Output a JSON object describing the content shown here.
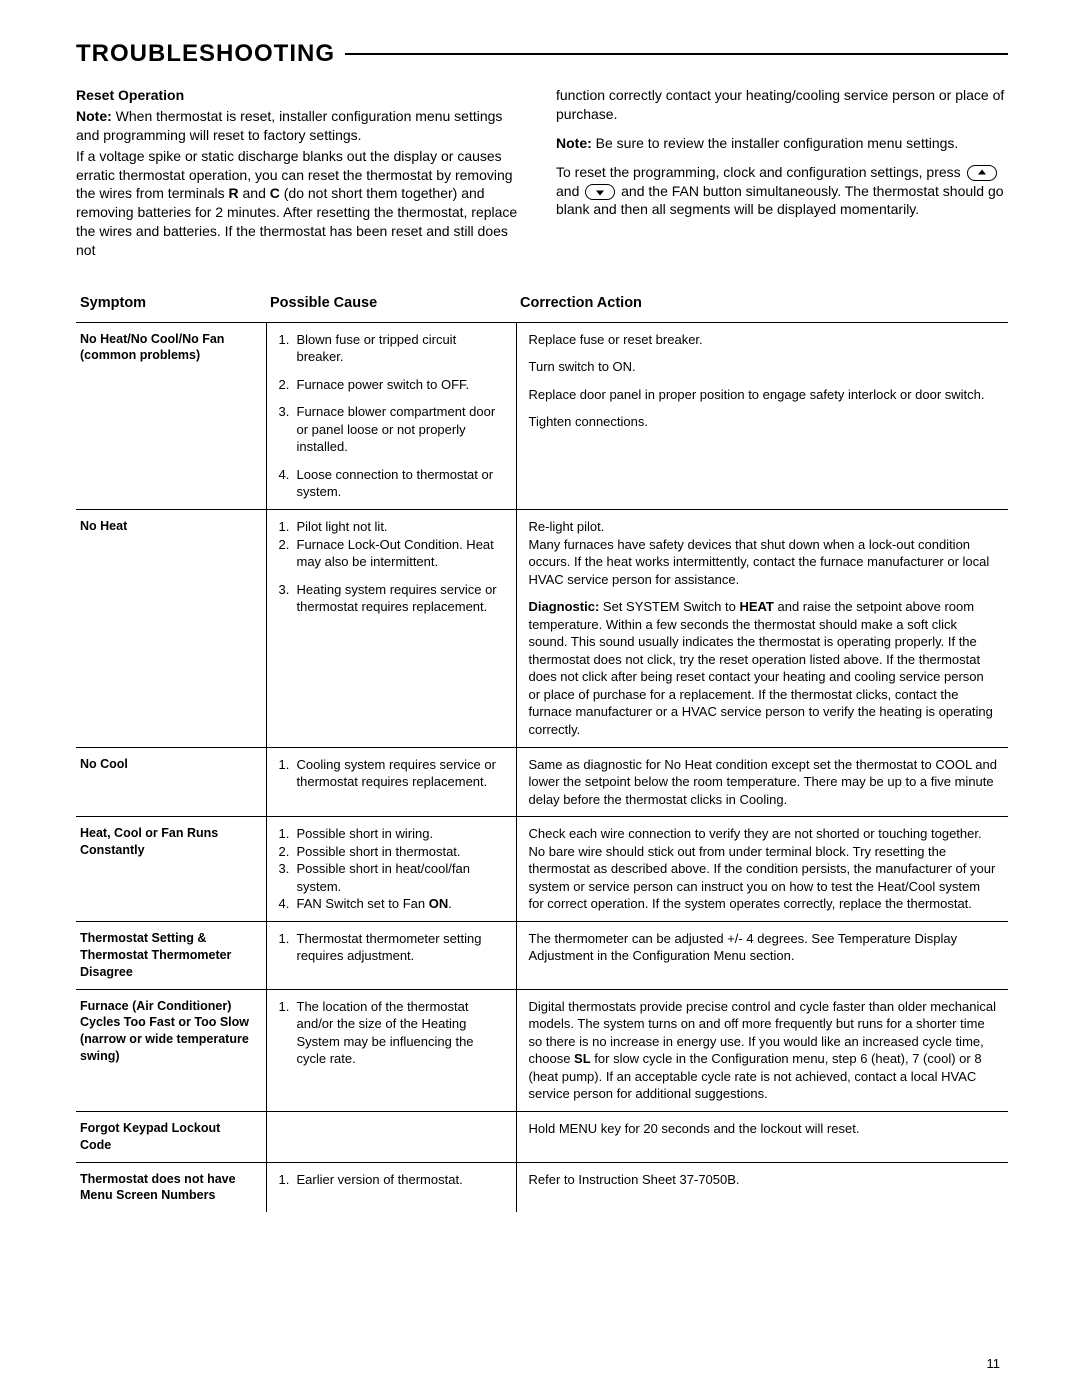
{
  "title": "TROUBLESHOOTING",
  "page_number": "11",
  "intro": {
    "left": {
      "heading": "Reset Operation",
      "note_label": "Note:",
      "note_text": " When thermostat is reset, installer configuration menu settings and programming will reset to factory settings.",
      "p2_a": "If a voltage spike or static discharge blanks out the display or causes erratic thermostat operation, you can reset the thermostat by removing the wires from terminals ",
      "p2_b": " and ",
      "p2_c": " (do not short them together) and removing batteries for 2 minutes. After resetting the thermostat, replace the wires and batteries. If the thermostat has been reset and still does not",
      "bold_R": "R",
      "bold_C": "C"
    },
    "right": {
      "p1": "function correctly contact your heating/cooling service person or place of purchase.",
      "note_label": "Note:",
      "note_text": " Be sure to review the installer configuration menu settings.",
      "p3_a": "To reset the programming, clock and configuration settings, press ",
      "p3_b": " and ",
      "p3_c": " and the FAN button simultaneously. The thermostat should go blank and then all segments will be displayed momentarily."
    }
  },
  "headers": {
    "symptom": "Symptom",
    "cause": "Possible Cause",
    "action": "Correction Action"
  },
  "rows": [
    {
      "symptom": "No Heat/No Cool/No Fan (common problems)",
      "causes": [
        {
          "nums": [
            "1."
          ],
          "texts": [
            "Blown fuse or tripped circuit breaker."
          ]
        },
        {
          "nums": [
            "2."
          ],
          "texts": [
            "Furnace power switch to OFF."
          ]
        },
        {
          "nums": [
            "3."
          ],
          "texts": [
            "Furnace blower compartment door or panel loose or not properly installed."
          ]
        },
        {
          "nums": [
            "4."
          ],
          "texts": [
            "Loose connection to thermostat or system."
          ]
        }
      ],
      "actions": [
        "Replace fuse or reset breaker.",
        "Turn switch to ON.",
        "Replace door panel in proper position to engage safety interlock or door switch.",
        "Tighten connections."
      ]
    },
    {
      "symptom": "No Heat",
      "causes": [
        {
          "nums": [
            "1.",
            "2."
          ],
          "texts": [
            "Pilot light not lit.",
            "Furnace Lock-Out Condition. Heat may also be intermittent."
          ]
        },
        {
          "nums": [
            "3."
          ],
          "texts": [
            "Heating system requires service or thermostat requires replacement."
          ]
        }
      ],
      "actions": [
        "Re-light pilot.\nMany furnaces have safety devices that shut down when a lock-out condition occurs. If the heat works intermittently, contact the furnace manufacturer or local HVAC service person for assistance.",
        {
          "bold_lead": "Diagnostic:",
          "text": " Set SYSTEM Switch to ",
          "bold_mid": "HEAT",
          "tail": " and raise the setpoint above room temperature. Within a few seconds the thermostat should make a soft click sound. This sound usually indicates the thermostat is operating properly. If the thermostat does not click, try the reset operation listed above. If the thermostat does not click after being reset contact your heating and cooling service person or place of purchase for a replacement. If the thermostat clicks, contact the furnace manufacturer or a HVAC service person to verify the heating is operating correctly."
        }
      ]
    },
    {
      "symptom": "No Cool",
      "causes": [
        {
          "nums": [
            "1."
          ],
          "texts": [
            "Cooling system requires service or thermostat requires replacement."
          ]
        }
      ],
      "actions": [
        "Same as diagnostic for No Heat condition except set the thermostat to COOL and lower the setpoint below the room temperature. There may be up to a five minute delay before the thermostat clicks in Cooling."
      ]
    },
    {
      "symptom": "Heat, Cool or Fan Runs Constantly",
      "causes": [
        {
          "nums": [
            "1.",
            "2.",
            "3.",
            "4."
          ],
          "texts": [
            "Possible short in wiring.",
            "Possible short in thermostat.",
            "Possible short in heat/cool/fan system.",
            "FAN Switch set to Fan "
          ],
          "bold_tail": "ON",
          "tail_suffix": "."
        }
      ],
      "actions": [
        "Check each wire connection to verify they are not shorted or touching together. No bare wire should stick out from under terminal block. Try resetting the thermostat as described above. If the condition persists, the manufacturer of your system or service person can instruct you on how to test the Heat/Cool system for correct operation. If the system operates correctly, replace the thermostat."
      ]
    },
    {
      "symptom": "Thermostat Setting & Thermostat Thermometer Disagree",
      "causes": [
        {
          "nums": [
            "1."
          ],
          "texts": [
            "Thermostat thermometer setting requires adjustment."
          ]
        }
      ],
      "actions": [
        "The thermometer can be adjusted +/- 4 degrees. See Temperature Display Adjustment in the Configuration Menu section."
      ]
    },
    {
      "symptom": "Furnace (Air Conditioner) Cycles Too Fast or Too Slow (narrow or wide temperature swing)",
      "causes": [
        {
          "nums": [
            "1."
          ],
          "texts": [
            "The location of the thermostat and/or the size of the Heating System may be influencing the cycle rate."
          ]
        }
      ],
      "actions": [
        {
          "pre": "Digital thermostats provide precise control and cycle faster than older mechanical models. The system turns on and off more frequently but runs for a shorter time so there is no increase in energy use. If you would like an increased cycle time, choose ",
          "bold_mid": "SL",
          "tail": " for slow cycle in the Configuration menu, step 6 (heat), 7 (cool) or 8 (heat pump). If an acceptable cycle rate is not achieved, contact a local HVAC service person for additional suggestions."
        }
      ]
    },
    {
      "symptom": "Forgot Keypad Lockout Code",
      "causes": [],
      "actions": [
        "Hold MENU key for 20 seconds and the lockout will reset."
      ]
    },
    {
      "symptom": "Thermostat does not have Menu Screen Numbers",
      "causes": [
        {
          "nums": [
            "1."
          ],
          "texts": [
            "Earlier version of thermostat."
          ]
        }
      ],
      "actions": [
        "Refer to Instruction Sheet 37-7050B."
      ]
    }
  ]
}
